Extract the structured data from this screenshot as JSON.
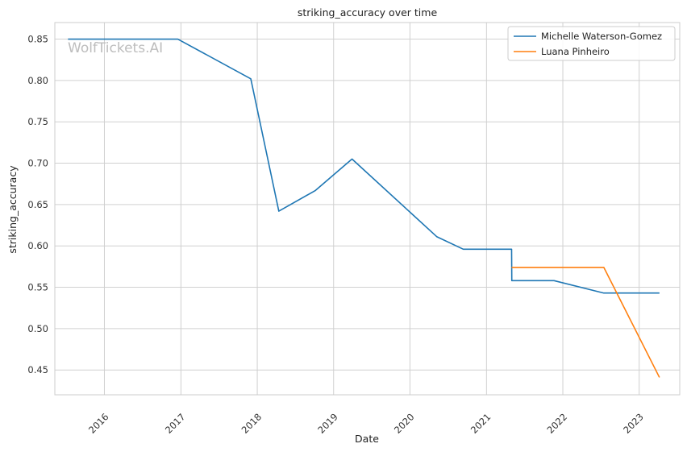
{
  "chart_data": {
    "type": "line",
    "title": "striking_accuracy over time",
    "xlabel": "Date",
    "ylabel": "striking_accuracy",
    "watermark": "WolfTickets.AI",
    "x_ticks": [
      "2016",
      "2017",
      "2018",
      "2019",
      "2020",
      "2021",
      "2022",
      "2023"
    ],
    "y_ticks": [
      "0.45",
      "0.50",
      "0.55",
      "0.60",
      "0.65",
      "0.70",
      "0.75",
      "0.80",
      "0.85"
    ],
    "xlim": [
      "2015-05-09",
      "2023-07-14"
    ],
    "ylim": [
      0.42,
      0.87
    ],
    "grid": true,
    "legend_position": "top-right",
    "series": [
      {
        "name": "Michelle Waterson-Gomez",
        "color": "#1f77b4",
        "points": [
          {
            "x": "2015-07-11",
            "y": 0.85
          },
          {
            "x": "2016-12-17",
            "y": 0.85
          },
          {
            "x": "2017-12-01",
            "y": 0.802
          },
          {
            "x": "2018-04-14",
            "y": 0.642
          },
          {
            "x": "2018-10-06",
            "y": 0.667
          },
          {
            "x": "2019-03-30",
            "y": 0.705
          },
          {
            "x": "2020-05-09",
            "y": 0.611
          },
          {
            "x": "2020-09-12",
            "y": 0.596
          },
          {
            "x": "2021-05-01",
            "y": 0.596
          },
          {
            "x": "2021-05-02",
            "y": 0.558
          },
          {
            "x": "2021-11-20",
            "y": 0.558
          },
          {
            "x": "2022-07-16",
            "y": 0.543
          },
          {
            "x": "2023-04-08",
            "y": 0.543
          }
        ]
      },
      {
        "name": "Luana Pinheiro",
        "color": "#ff7f0e",
        "points": [
          {
            "x": "2021-05-01",
            "y": 0.574
          },
          {
            "x": "2022-07-16",
            "y": 0.574
          },
          {
            "x": "2023-04-08",
            "y": 0.441
          }
        ]
      }
    ]
  }
}
